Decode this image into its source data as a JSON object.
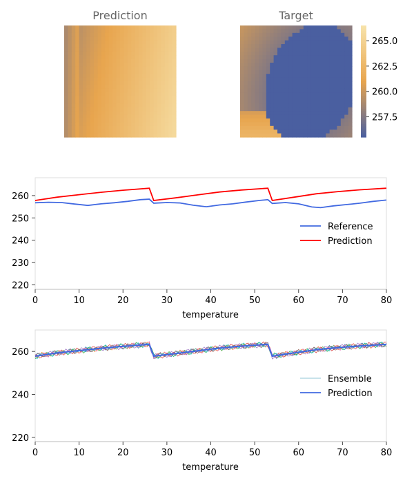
{
  "chart_data": [
    {
      "type": "heatmap",
      "title": "Prediction",
      "grid": false,
      "colormap": [
        "#4a5fa0",
        "#e8a54e",
        "#f7e3ab"
      ],
      "description_of_field": "smooth warm gradient, grey-blue at left edge, orange in middle, pale yellow toward right"
    },
    {
      "type": "heatmap",
      "title": "Target",
      "grid": false,
      "colormap": [
        "#4a5fa0",
        "#e8a54e",
        "#f7e3ab"
      ],
      "colorbar": {
        "range": [
          255.5,
          266.5
        ],
        "ticks": [
          257.5,
          260.0,
          262.5,
          265.0
        ],
        "tick_labels": [
          "257.5",
          "260.0",
          "262.5",
          "265.0"
        ]
      }
    },
    {
      "type": "line",
      "xlabel": "temperature",
      "ylabel": "",
      "xlim": [
        0,
        80
      ],
      "ylim": [
        218,
        268
      ],
      "xticks": [
        0,
        10,
        20,
        30,
        40,
        50,
        60,
        70,
        80
      ],
      "yticks": [
        220,
        230,
        240,
        250,
        260
      ],
      "grid": false,
      "legend": "center-right",
      "series": [
        {
          "name": "Reference",
          "color": "#4169e1",
          "x": [
            0,
            3,
            6,
            9,
            12,
            15,
            18,
            21,
            24,
            26,
            27,
            30,
            33,
            36,
            39,
            42,
            45,
            48,
            51,
            53,
            54,
            57,
            60,
            63,
            65,
            68,
            71,
            74,
            77,
            80
          ],
          "y": [
            256.8,
            257.0,
            256.9,
            256.2,
            255.6,
            256.3,
            256.8,
            257.4,
            258.2,
            258.4,
            256.6,
            256.9,
            256.7,
            255.7,
            255.0,
            255.8,
            256.3,
            257.1,
            257.8,
            258.2,
            256.5,
            256.9,
            256.3,
            254.9,
            254.6,
            255.4,
            256.0,
            256.6,
            257.4,
            258.0
          ]
        },
        {
          "name": "Prediction",
          "color": "#ff0000",
          "x": [
            0,
            5,
            10,
            15,
            20,
            26,
            27,
            32,
            37,
            42,
            47,
            53,
            54,
            59,
            64,
            69,
            74,
            80
          ],
          "y": [
            257.8,
            259.3,
            260.4,
            261.5,
            262.4,
            263.3,
            257.8,
            259.0,
            260.3,
            261.6,
            262.5,
            263.3,
            257.8,
            259.3,
            260.8,
            261.8,
            262.6,
            263.3
          ]
        }
      ]
    },
    {
      "type": "line",
      "xlabel": "temperature",
      "ylabel": "",
      "xlim": [
        0,
        80
      ],
      "ylim": [
        218,
        270
      ],
      "xticks": [
        0,
        10,
        20,
        30,
        40,
        50,
        60,
        70,
        80
      ],
      "yticks": [
        220,
        240,
        260
      ],
      "grid": false,
      "legend": "center-right",
      "series": [
        {
          "name": "Ensemble",
          "color": "#6ab0c8",
          "note_members": 8,
          "member_colors": [
            "#1f77b4",
            "#ff7f0e",
            "#2ca02c",
            "#d62728",
            "#9467bd",
            "#8c564b",
            "#e377c2",
            "#17becf"
          ],
          "x": [
            0,
            5,
            10,
            15,
            20,
            26,
            27,
            32,
            37,
            42,
            47,
            53,
            54,
            59,
            64,
            69,
            74,
            80
          ],
          "y": [
            257.8,
            259.3,
            260.4,
            261.5,
            262.4,
            263.3,
            257.8,
            259.0,
            260.3,
            261.6,
            262.5,
            263.3,
            257.8,
            259.3,
            260.8,
            261.8,
            262.6,
            263.3
          ]
        },
        {
          "name": "Prediction",
          "color": "#4169e1",
          "x": [
            0,
            5,
            10,
            15,
            20,
            26,
            27,
            32,
            37,
            42,
            47,
            53,
            54,
            59,
            64,
            69,
            74,
            80
          ],
          "y": [
            257.8,
            259.3,
            260.4,
            261.5,
            262.4,
            263.3,
            257.8,
            259.0,
            260.3,
            261.6,
            262.5,
            263.3,
            257.8,
            259.3,
            260.8,
            261.8,
            262.6,
            263.3
          ]
        }
      ]
    }
  ]
}
